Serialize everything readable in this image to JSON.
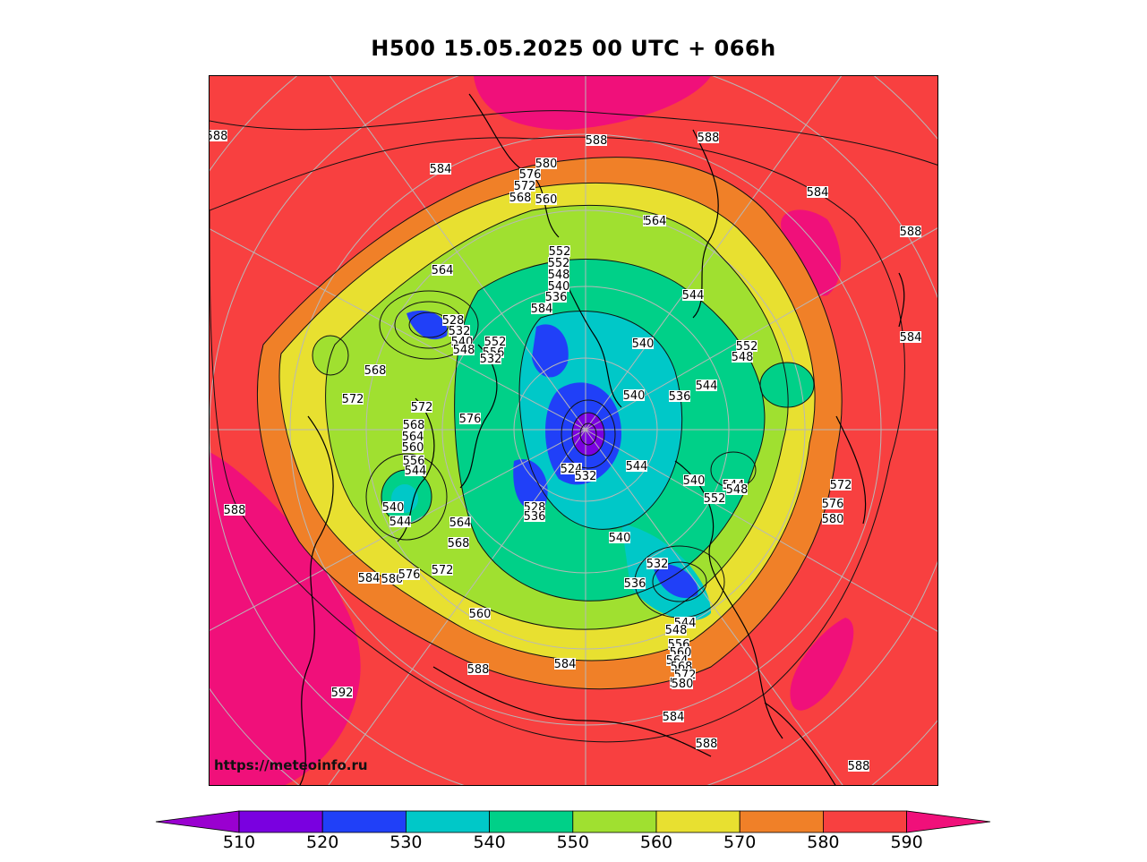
{
  "title": "H500  15.05.2025 00 UTC + 066h",
  "watermark": "https://meteoinfo.ru",
  "colorbar": {
    "ticks": [
      "510",
      "520",
      "530",
      "540",
      "550",
      "560",
      "570",
      "580",
      "590"
    ],
    "colors": [
      "#9a00d0",
      "#7a00e0",
      "#2040f8",
      "#00c8c8",
      "#00d088",
      "#a0e030",
      "#e8e030",
      "#f08028",
      "#f84040",
      "#f0107a"
    ]
  },
  "contour_labels": [
    "592",
    "588",
    "584",
    "588",
    "588",
    "584",
    "588",
    "580",
    "576",
    "572",
    "568",
    "560",
    "552",
    "564",
    "552",
    "548",
    "540",
    "536",
    "584",
    "564",
    "528",
    "532",
    "540",
    "548",
    "552",
    "556",
    "560",
    "532",
    "540",
    "544",
    "564",
    "568",
    "572",
    "572",
    "576",
    "568",
    "564",
    "560",
    "556",
    "544",
    "540",
    "544",
    "564",
    "568",
    "572",
    "584",
    "580",
    "576",
    "560",
    "524",
    "532",
    "528",
    "536",
    "540",
    "544",
    "540",
    "552",
    "544",
    "548",
    "532",
    "536",
    "544",
    "548",
    "556",
    "560",
    "564",
    "568",
    "572",
    "576",
    "580",
    "588",
    "584",
    "588",
    "584",
    "552",
    "548",
    "544",
    "536",
    "540",
    "572",
    "576",
    "580",
    "588",
    "584",
    "592",
    "592",
    "588"
  ]
}
